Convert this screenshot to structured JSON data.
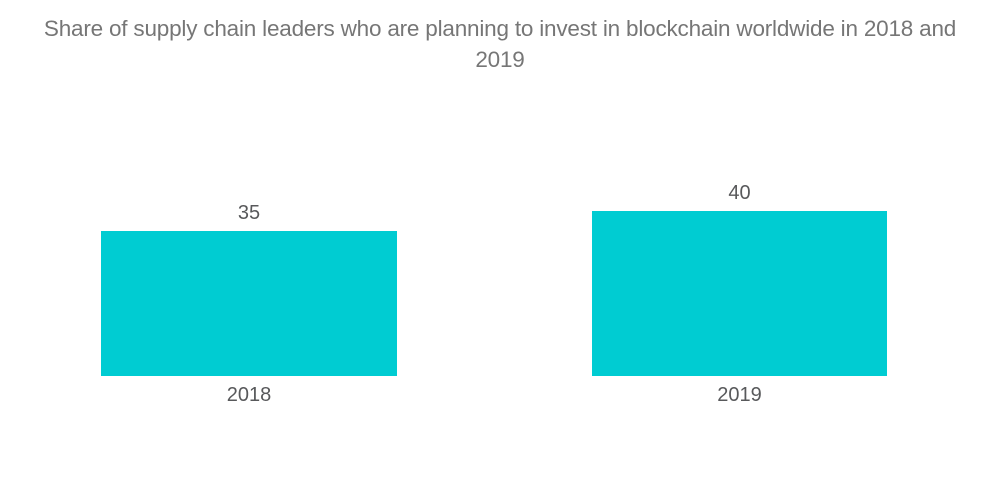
{
  "chart_data": {
    "type": "bar",
    "title": "Share of supply chain leaders who are planning to invest in blockchain worldwide in 2018 and 2019",
    "categories": [
      "2018",
      "2019"
    ],
    "values": [
      35,
      40
    ],
    "value_labels": [
      "35",
      "40"
    ],
    "xlabel": "",
    "ylabel": "",
    "ylim": [
      0,
      45
    ],
    "grid": false,
    "legend": false,
    "orientation": "vertical",
    "bar_color": "#00ccd2"
  },
  "colors": {
    "background": "#ffffff",
    "title_text": "#767676",
    "label_text": "#58595b",
    "bar": "#00ccd2"
  }
}
